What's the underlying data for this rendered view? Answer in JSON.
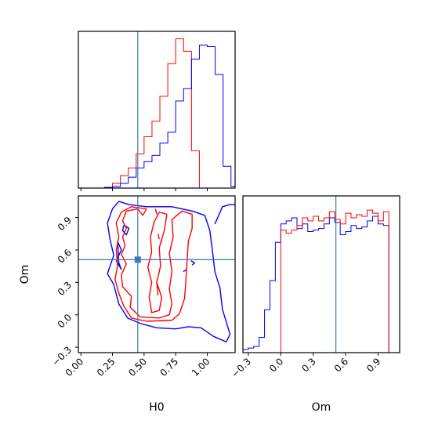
{
  "chart_data": {
    "type": "corner",
    "params": [
      "H0",
      "Om"
    ],
    "truth": {
      "H0": 0.45,
      "Om": 0.51,
      "color": "#3a7bb5"
    },
    "ranges": {
      "H0": [
        -0.02,
        1.22
      ],
      "Om": [
        -0.35,
        1.1
      ]
    },
    "ticks": {
      "H0": {
        "values": [
          0.0,
          0.25,
          0.5,
          0.75,
          1.0
        ],
        "labels": [
          "0.00",
          "0.25",
          "0.50",
          "0.75",
          "1.00"
        ]
      },
      "Om": {
        "values": [
          -0.3,
          0.0,
          0.3,
          0.6,
          0.9
        ],
        "labels": [
          "−0.3",
          "0.0",
          "0.3",
          "0.6",
          "0.9"
        ]
      }
    },
    "series": [
      {
        "color": "#ff0000",
        "key": "red"
      },
      {
        "color": "#0000ff",
        "key": "blue"
      }
    ],
    "hist_H0": {
      "bins": [
        0.0,
        0.0625,
        0.125,
        0.1875,
        0.25,
        0.3125,
        0.375,
        0.4375,
        0.5,
        0.5625,
        0.625,
        0.6875,
        0.75,
        0.8125,
        0.875,
        0.9375,
        1.0,
        1.0625,
        1.125,
        1.1875,
        1.25
      ],
      "red": [
        0,
        0,
        0,
        0.5,
        3,
        8,
        13,
        22,
        33,
        43,
        59,
        80,
        96,
        88,
        24,
        0,
        0,
        0,
        0,
        0
      ],
      "blue": [
        0,
        0,
        0,
        0.5,
        1,
        3,
        7,
        13,
        17,
        21,
        29,
        36,
        56,
        64,
        83,
        92,
        91,
        73,
        14,
        1
      ]
    },
    "hist_Om": {
      "bins": [
        -0.35,
        -0.3,
        -0.25,
        -0.2,
        -0.15,
        -0.1,
        -0.05,
        0.0,
        0.05,
        0.1,
        0.15,
        0.2,
        0.25,
        0.3,
        0.35,
        0.4,
        0.45,
        0.5,
        0.55,
        0.6,
        0.65,
        0.7,
        0.75,
        0.8,
        0.85,
        0.9,
        0.95,
        1.0,
        1.05
      ],
      "red": [
        0,
        0,
        0,
        0,
        0,
        0,
        0,
        80,
        78,
        80,
        83,
        88,
        86,
        89,
        86,
        88,
        92,
        87,
        84,
        91,
        88,
        90,
        89,
        93,
        91,
        86,
        92,
        0
      ],
      "blue": [
        2,
        3,
        4,
        10,
        28,
        47,
        72,
        84,
        86,
        88,
        81,
        84,
        79,
        80,
        81,
        84,
        88,
        85,
        77,
        79,
        83,
        81,
        82,
        86,
        89,
        84,
        83,
        0
      ]
    },
    "contours": {
      "red": [
        [
          [
            0.52,
            0.98
          ],
          [
            0.49,
            0.92
          ],
          [
            0.45,
            0.98
          ],
          [
            0.36,
            0.96
          ],
          [
            0.33,
            0.87
          ],
          [
            0.36,
            0.8
          ],
          [
            0.33,
            0.72
          ],
          [
            0.35,
            0.64
          ],
          [
            0.32,
            0.56
          ],
          [
            0.36,
            0.47
          ],
          [
            0.32,
            0.37
          ],
          [
            0.33,
            0.26
          ],
          [
            0.4,
            0.17
          ],
          [
            0.39,
            0.07
          ],
          [
            0.47,
            -0.02
          ],
          [
            0.62,
            -0.03
          ],
          [
            0.7,
            0.0
          ],
          [
            0.72,
            0.1
          ],
          [
            0.7,
            0.24
          ],
          [
            0.72,
            0.4
          ],
          [
            0.7,
            0.57
          ],
          [
            0.73,
            0.72
          ],
          [
            0.72,
            0.88
          ],
          [
            0.8,
            0.96
          ],
          [
            0.88,
            0.93
          ],
          [
            0.88,
            0.8
          ],
          [
            0.85,
            0.68
          ],
          [
            0.84,
            0.5
          ],
          [
            0.83,
            0.3
          ],
          [
            0.82,
            0.15
          ],
          [
            0.78,
            0.01
          ],
          [
            0.72,
            -0.05
          ],
          [
            0.52,
            -0.06
          ],
          [
            0.4,
            -0.03
          ],
          [
            0.34,
            0.08
          ],
          [
            0.3,
            0.2
          ],
          [
            0.27,
            0.33
          ],
          [
            0.29,
            0.45
          ],
          [
            0.28,
            0.6
          ],
          [
            0.3,
            0.72
          ],
          [
            0.28,
            0.85
          ],
          [
            0.32,
            0.95
          ],
          [
            0.4,
            1.0
          ],
          [
            0.52,
            0.98
          ]
        ],
        [
          [
            0.68,
            0.93
          ],
          [
            0.66,
            0.78
          ],
          [
            0.62,
            0.62
          ],
          [
            0.63,
            0.45
          ],
          [
            0.6,
            0.3
          ],
          [
            0.64,
            0.16
          ],
          [
            0.62,
            0.04
          ],
          [
            0.56,
            0.02
          ],
          [
            0.54,
            0.16
          ],
          [
            0.56,
            0.3
          ],
          [
            0.53,
            0.44
          ],
          [
            0.56,
            0.58
          ],
          [
            0.55,
            0.72
          ],
          [
            0.58,
            0.86
          ],
          [
            0.62,
            0.95
          ],
          [
            0.68,
            0.93
          ]
        ],
        [
          [
            0.6,
            0.93
          ],
          [
            0.59,
            0.98
          ]
        ],
        [
          [
            0.62,
            0.7
          ],
          [
            0.61,
            0.75
          ]
        ],
        [
          [
            0.63,
            0.66
          ],
          [
            0.64,
            0.69
          ]
        ],
        [
          [
            0.6,
            0.3
          ],
          [
            0.61,
            0.18
          ]
        ]
      ],
      "blue": [
        [
          [
            0.3,
            1.05
          ],
          [
            0.38,
            1.02
          ],
          [
            0.52,
            1.0
          ],
          [
            0.72,
            1.0
          ],
          [
            0.88,
            0.96
          ],
          [
            0.98,
            0.92
          ],
          [
            1.02,
            0.78
          ],
          [
            1.04,
            0.6
          ],
          [
            1.06,
            0.4
          ],
          [
            1.1,
            0.25
          ],
          [
            1.12,
            0.05
          ],
          [
            1.18,
            -0.18
          ],
          [
            1.15,
            -0.25
          ],
          [
            1.05,
            -0.2
          ],
          [
            0.95,
            -0.12
          ],
          [
            0.85,
            -0.11
          ],
          [
            0.75,
            -0.13
          ],
          [
            0.6,
            -0.12
          ],
          [
            0.47,
            -0.08
          ],
          [
            0.37,
            -0.03
          ],
          [
            0.3,
            0.1
          ],
          [
            0.26,
            0.28
          ],
          [
            0.21,
            0.38
          ],
          [
            0.26,
            0.55
          ],
          [
            0.23,
            0.7
          ],
          [
            0.21,
            0.85
          ],
          [
            0.25,
            0.98
          ],
          [
            0.3,
            1.05
          ]
        ],
        [
          [
            1.06,
            0.84
          ],
          [
            1.12,
            1.0
          ],
          [
            1.18,
            1.02
          ],
          [
            1.22,
            1.02
          ]
        ],
        [
          [
            0.29,
            0.68
          ],
          [
            0.32,
            0.6
          ],
          [
            0.28,
            0.5
          ],
          [
            0.32,
            0.42
          ],
          [
            0.3,
            0.48
          ],
          [
            0.29,
            0.68
          ]
        ],
        [
          [
            0.34,
            0.83
          ],
          [
            0.38,
            0.8
          ],
          [
            0.36,
            0.74
          ],
          [
            0.33,
            0.78
          ],
          [
            0.34,
            0.83
          ]
        ],
        [
          [
            0.87,
            0.5
          ],
          [
            0.9,
            0.48
          ],
          [
            0.88,
            0.46
          ]
        ],
        [
          [
            0.81,
            0.4
          ],
          [
            0.84,
            0.42
          ]
        ]
      ]
    },
    "xlabel_left": "H0",
    "xlabel_right": "Om",
    "ylabel_left": "Om"
  }
}
